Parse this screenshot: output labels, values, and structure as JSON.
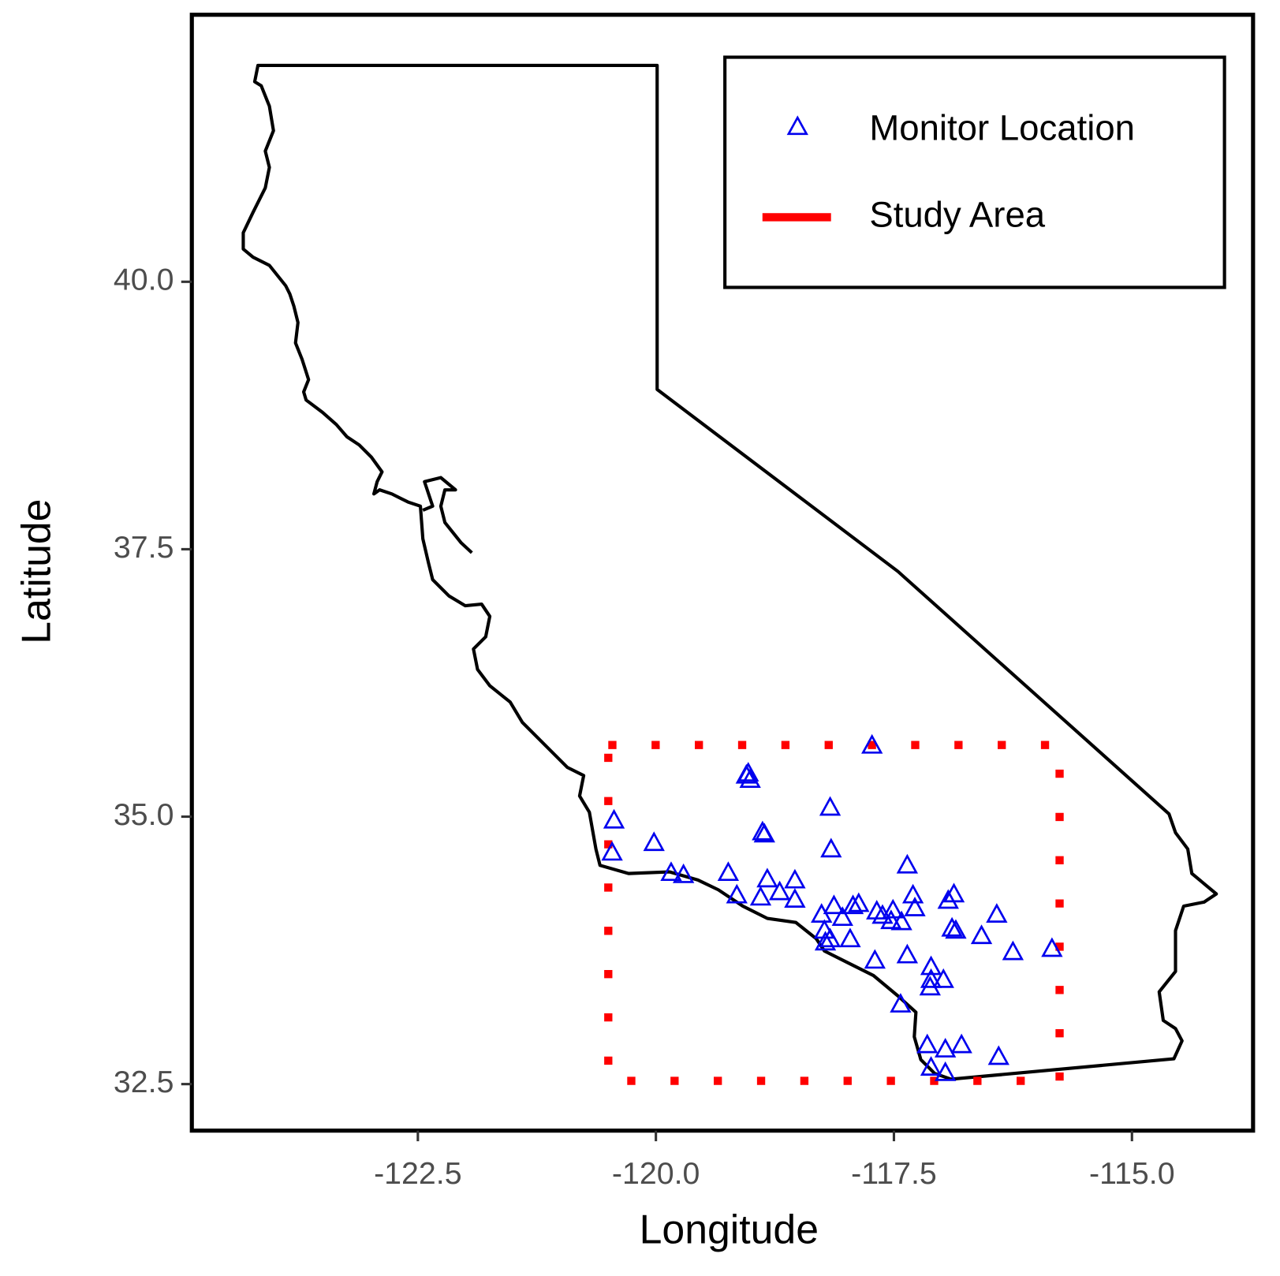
{
  "chart_data": {
    "type": "scatter",
    "x_label": "Longitude",
    "y_label": "Latitude",
    "xlim": [
      -124.874,
      -113.728
    ],
    "ylim": [
      32.065,
      42.496
    ],
    "xticks": [
      -122.5,
      {
        "value": -120,
        "label": "-120.0"
      },
      -117.5,
      {
        "value": -115,
        "label": "-115.0"
      }
    ],
    "yticks": [
      32.5,
      {
        "value": 35,
        "label": "35.0"
      },
      37.5,
      {
        "value": 40,
        "label": "40.0"
      }
    ],
    "legend_position": "top-right",
    "series": [
      {
        "name": "Monitor Location",
        "color": "#0000ee",
        "marker": "triangle",
        "x": [
          -120.44,
          -120.46,
          -120.02,
          -119.84,
          -119.71,
          -119.24,
          -119.15,
          -119.05,
          -119.01,
          -119.03,
          -118.88,
          -118.86,
          -118.83,
          -118.9,
          -118.7,
          -118.54,
          -118.54,
          -118.17,
          -118.16,
          -117.73,
          -118.26,
          -118.23,
          -118.22,
          -118.17,
          -118.13,
          -118.04,
          -117.96,
          -117.93,
          -117.87,
          -117.68,
          -117.62,
          -117.53,
          -117.51,
          -117.42,
          -117.36,
          -117.3,
          -117.28,
          -117.36,
          -117.7,
          -117.43,
          -117.11,
          -117.12,
          -117.11,
          -116.98,
          -116.93,
          -116.87,
          -116.89,
          -116.85,
          -116.58,
          -116.42,
          -116.25,
          -115.84,
          -117.15,
          -116.96,
          -116.79,
          -117.11,
          -116.96,
          -116.4
        ],
        "y": [
          34.96,
          34.66,
          34.75,
          34.47,
          34.45,
          34.47,
          34.26,
          35.38,
          35.34,
          35.4,
          34.85,
          34.83,
          34.41,
          34.24,
          34.29,
          34.4,
          34.22,
          35.08,
          34.69,
          35.66,
          34.08,
          33.93,
          33.82,
          33.85,
          34.16,
          34.05,
          33.85,
          34.16,
          34.18,
          34.11,
          34.07,
          34.02,
          34.12,
          34.01,
          34.54,
          34.26,
          34.14,
          33.7,
          33.65,
          33.24,
          33.59,
          33.4,
          33.47,
          33.47,
          34.21,
          34.27,
          33.95,
          33.93,
          33.88,
          34.08,
          33.73,
          33.76,
          32.86,
          32.82,
          32.86,
          32.65,
          32.6,
          32.75
        ]
      }
    ],
    "study_area": {
      "name": "Study Area",
      "color": "#ff0000",
      "x": [
        -120.5,
        -115.76
      ],
      "y": [
        32.53,
        35.67
      ]
    }
  }
}
